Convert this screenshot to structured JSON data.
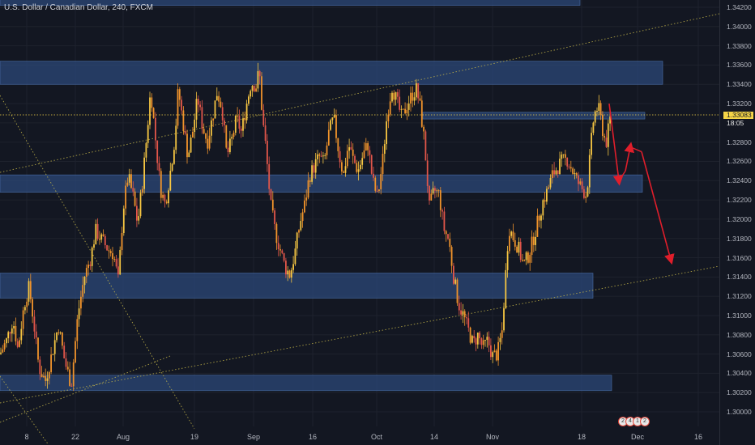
{
  "header": {
    "symbol_title": "U.S. Dollar / Canadian Dollar, 240, FXCM"
  },
  "price_axis": {
    "ticks": [
      "1.34200",
      "1.34000",
      "1.33800",
      "1.33600",
      "1.33400",
      "1.33200",
      "1.33000",
      "1.32800",
      "1.32600",
      "1.32400",
      "1.32200",
      "1.32000",
      "1.31800",
      "1.31600",
      "1.31400",
      "1.31200",
      "1.31000",
      "1.30800",
      "1.30600",
      "1.30400",
      "1.30200",
      "1.30000"
    ],
    "current_price": "1.33083",
    "countdown": "18:05"
  },
  "time_axis": {
    "labels": [
      "8",
      "22",
      "Aug",
      "19",
      "Sep",
      "16",
      "Oct",
      "14",
      "Nov",
      "18",
      "Dec",
      "16"
    ]
  },
  "event_badges": [
    "2",
    "4",
    "1",
    "2"
  ],
  "colors": {
    "background": "#131722",
    "candle": "#f5c542",
    "candle_alt": "#f0932b",
    "candle_down": "#e2564a",
    "zone": "#2c4a7c",
    "projection_arrow": "#e01e2b",
    "price_line": "#f5d547",
    "trendline": "#c8b94a"
  },
  "chart_data": {
    "type": "candlestick",
    "title": "U.S. Dollar / Canadian Dollar, 240, FXCM",
    "ylim": [
      1.2986,
      1.3428
    ],
    "y_ticks": [
      1.342,
      1.34,
      1.338,
      1.336,
      1.334,
      1.332,
      1.33,
      1.328,
      1.326,
      1.324,
      1.322,
      1.32,
      1.318,
      1.316,
      1.314,
      1.312,
      1.31,
      1.308,
      1.306,
      1.304,
      1.302,
      1.3
    ],
    "x_labels": [
      "8",
      "22",
      "Aug",
      "19",
      "Sep",
      "16",
      "Oct",
      "14",
      "Nov",
      "18",
      "Dec",
      "16"
    ],
    "last_price": 1.33083,
    "price_path": [
      [
        0,
        1.306
      ],
      [
        8,
        1.3074
      ],
      [
        16,
        1.3096
      ],
      [
        22,
        1.3065
      ],
      [
        30,
        1.3112
      ],
      [
        36,
        1.313
      ],
      [
        42,
        1.309
      ],
      [
        48,
        1.3046
      ],
      [
        56,
        1.3032
      ],
      [
        64,
        1.306
      ],
      [
        72,
        1.309
      ],
      [
        80,
        1.3052
      ],
      [
        88,
        1.3028
      ],
      [
        96,
        1.31
      ],
      [
        104,
        1.314
      ],
      [
        112,
        1.316
      ],
      [
        118,
        1.3188
      ],
      [
        126,
        1.3178
      ],
      [
        134,
        1.3168
      ],
      [
        140,
        1.3164
      ],
      [
        146,
        1.3136
      ],
      [
        152,
        1.321
      ],
      [
        158,
        1.3245
      ],
      [
        164,
        1.3225
      ],
      [
        170,
        1.3195
      ],
      [
        176,
        1.324
      ],
      [
        181,
        1.3285
      ],
      [
        186,
        1.3335
      ],
      [
        192,
        1.3282
      ],
      [
        198,
        1.3232
      ],
      [
        204,
        1.3215
      ],
      [
        210,
        1.3248
      ],
      [
        216,
        1.3285
      ],
      [
        220,
        1.3335
      ],
      [
        226,
        1.33
      ],
      [
        232,
        1.3265
      ],
      [
        238,
        1.3292
      ],
      [
        244,
        1.3326
      ],
      [
        250,
        1.3296
      ],
      [
        256,
        1.328
      ],
      [
        262,
        1.3305
      ],
      [
        268,
        1.3332
      ],
      [
        274,
        1.3316
      ],
      [
        280,
        1.3265
      ],
      [
        286,
        1.3282
      ],
      [
        292,
        1.3305
      ],
      [
        298,
        1.329
      ],
      [
        304,
        1.3318
      ],
      [
        310,
        1.3342
      ],
      [
        316,
        1.3338
      ],
      [
        320,
        1.3355
      ],
      [
        324,
        1.3305
      ],
      [
        328,
        1.3275
      ],
      [
        334,
        1.3215
      ],
      [
        340,
        1.3186
      ],
      [
        346,
        1.3168
      ],
      [
        352,
        1.315
      ],
      [
        358,
        1.3142
      ],
      [
        364,
        1.3165
      ],
      [
        370,
        1.3195
      ],
      [
        376,
        1.3215
      ],
      [
        382,
        1.3245
      ],
      [
        388,
        1.3255
      ],
      [
        394,
        1.3265
      ],
      [
        400,
        1.3258
      ],
      [
        406,
        1.329
      ],
      [
        412,
        1.3305
      ],
      [
        418,
        1.327
      ],
      [
        424,
        1.3245
      ],
      [
        430,
        1.3278
      ],
      [
        436,
        1.3262
      ],
      [
        442,
        1.325
      ],
      [
        448,
        1.3266
      ],
      [
        454,
        1.3278
      ],
      [
        460,
        1.324
      ],
      [
        466,
        1.3222
      ],
      [
        472,
        1.3258
      ],
      [
        478,
        1.331
      ],
      [
        484,
        1.3338
      ],
      [
        490,
        1.3322
      ],
      [
        496,
        1.3305
      ],
      [
        502,
        1.3318
      ],
      [
        508,
        1.3328
      ],
      [
        514,
        1.3335
      ],
      [
        518,
        1.332
      ],
      [
        524,
        1.328
      ],
      [
        530,
        1.3212
      ],
      [
        536,
        1.323
      ],
      [
        542,
        1.3226
      ],
      [
        548,
        1.319
      ],
      [
        554,
        1.3178
      ],
      [
        560,
        1.314
      ],
      [
        566,
        1.3112
      ],
      [
        572,
        1.31
      ],
      [
        578,
        1.3085
      ],
      [
        584,
        1.307
      ],
      [
        590,
        1.308
      ],
      [
        596,
        1.3066
      ],
      [
        602,
        1.3074
      ],
      [
        608,
        1.3058
      ],
      [
        614,
        1.306
      ],
      [
        620,
        1.3085
      ],
      [
        624,
        1.314
      ],
      [
        628,
        1.3192
      ],
      [
        634,
        1.318
      ],
      [
        640,
        1.317
      ],
      [
        646,
        1.3152
      ],
      [
        652,
        1.3162
      ],
      [
        658,
        1.3178
      ],
      [
        664,
        1.3198
      ],
      [
        670,
        1.3218
      ],
      [
        676,
        1.323
      ],
      [
        682,
        1.3246
      ],
      [
        688,
        1.3254
      ],
      [
        694,
        1.326
      ],
      [
        700,
        1.3262
      ],
      [
        706,
        1.3252
      ],
      [
        712,
        1.324
      ],
      [
        718,
        1.3232
      ],
      [
        724,
        1.3225
      ],
      [
        728,
        1.3262
      ],
      [
        732,
        1.33
      ],
      [
        736,
        1.3316
      ],
      [
        740,
        1.3312
      ],
      [
        744,
        1.3292
      ],
      [
        748,
        1.3278
      ],
      [
        754,
        1.3308
      ]
    ],
    "zones": [
      {
        "from": 1.3435,
        "to": 1.3422
      },
      {
        "from": 1.3364,
        "to": 1.334
      },
      {
        "from": 1.3311,
        "to": 1.3304
      },
      {
        "from": 1.3246,
        "to": 1.3228
      },
      {
        "from": 1.3144,
        "to": 1.3118
      },
      {
        "from": 1.3038,
        "to": 1.3022
      }
    ],
    "projection": [
      [
        752,
        1.332
      ],
      [
        764,
        1.324
      ],
      [
        772,
        1.325
      ],
      [
        778,
        1.3275
      ],
      [
        784,
        1.3258
      ],
      [
        792,
        1.327
      ],
      [
        828,
        1.3158
      ]
    ]
  }
}
